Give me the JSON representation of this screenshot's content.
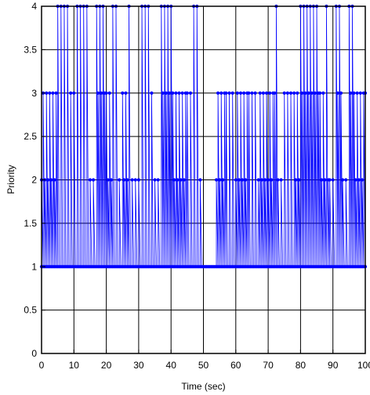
{
  "chart_data": {
    "type": "line",
    "title": "",
    "xlabel": "Time (sec)",
    "ylabel": "Priority",
    "xlim": [
      0,
      100
    ],
    "ylim": [
      0,
      4
    ],
    "xticks": [
      "0",
      "10",
      "20",
      "30",
      "40",
      "50",
      "60",
      "70",
      "80",
      "90",
      "100"
    ],
    "yticks": [
      "0",
      "0.5",
      "1",
      "1.5",
      "2",
      "2.5",
      "3",
      "3.5",
      "4"
    ],
    "grid": true,
    "legend": "none",
    "series_style": {
      "color": "#0000ff",
      "marker": "dot",
      "drawstyle": "stem-to-baseline"
    },
    "segments": [
      [
        0,
        5,
        2,
        3
      ],
      [
        5,
        9,
        4,
        1
      ],
      [
        9,
        11,
        3,
        1
      ],
      [
        11,
        15,
        4,
        1
      ],
      [
        15,
        17,
        2,
        1
      ],
      [
        17,
        20,
        4,
        3
      ],
      [
        20,
        22,
        3,
        2
      ],
      [
        22,
        24,
        4,
        1
      ],
      [
        24,
        25,
        2,
        1
      ],
      [
        25,
        27,
        3,
        2
      ],
      [
        27,
        28,
        4,
        1
      ],
      [
        28,
        31,
        2,
        1
      ],
      [
        31,
        34,
        4,
        1
      ],
      [
        34,
        35,
        3,
        1
      ],
      [
        35,
        37,
        2,
        1
      ],
      [
        37,
        41,
        4,
        3
      ],
      [
        41,
        45,
        2,
        3
      ],
      [
        45,
        47,
        3,
        1
      ],
      [
        47,
        49,
        4,
        1
      ],
      [
        49,
        50,
        2,
        1
      ],
      [
        50,
        54,
        1,
        1
      ],
      [
        54,
        57,
        2,
        3
      ],
      [
        57,
        60,
        3,
        1
      ],
      [
        60,
        64,
        2,
        3
      ],
      [
        64,
        67,
        3,
        1
      ],
      [
        67,
        72,
        2,
        3
      ],
      [
        72,
        73,
        3,
        4
      ],
      [
        73,
        75,
        2,
        1
      ],
      [
        75,
        78,
        3,
        1
      ],
      [
        78,
        80,
        3,
        2
      ],
      [
        80,
        86,
        4,
        3
      ],
      [
        86,
        88,
        3,
        2
      ],
      [
        88,
        89,
        4,
        2
      ],
      [
        89,
        91,
        2,
        1
      ],
      [
        91,
        93,
        4,
        3
      ],
      [
        93,
        95,
        2,
        1
      ],
      [
        95,
        97,
        4,
        3
      ],
      [
        97,
        100,
        2,
        3
      ]
    ]
  }
}
